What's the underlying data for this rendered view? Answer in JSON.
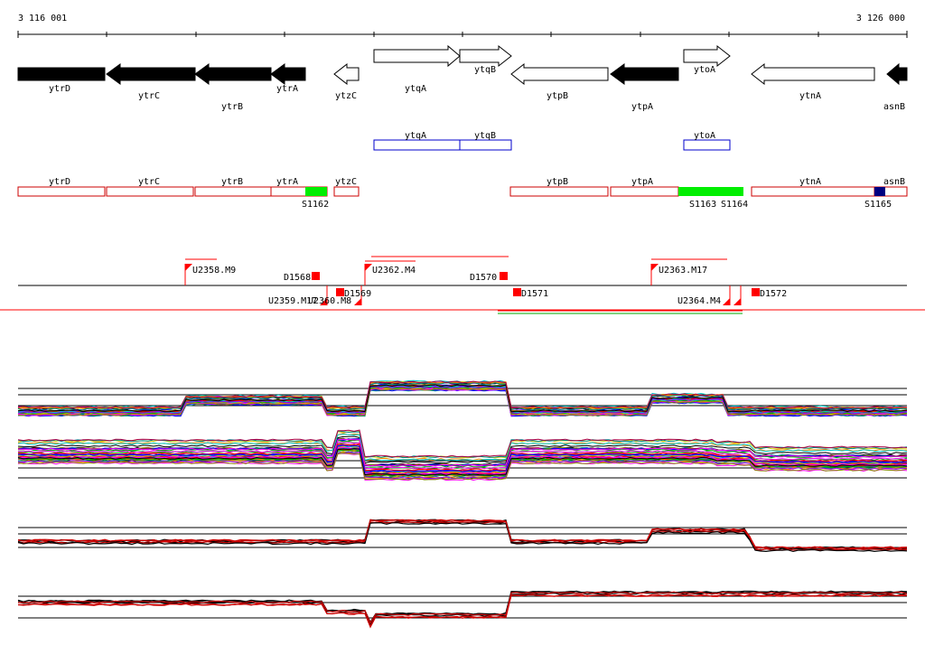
{
  "coordinates": {
    "start_label": "3 116 001",
    "end_label": "3 126 000"
  },
  "genes": [
    {
      "name": "ytrD",
      "strand": "-",
      "filled": true
    },
    {
      "name": "ytrC",
      "strand": "-",
      "filled": true
    },
    {
      "name": "ytrB",
      "strand": "-",
      "filled": true
    },
    {
      "name": "ytrA",
      "strand": "-",
      "filled": true
    },
    {
      "name": "ytzC",
      "strand": "-",
      "filled": false
    },
    {
      "name": "ytqA",
      "strand": "+",
      "filled": false
    },
    {
      "name": "ytqB",
      "strand": "+",
      "filled": false
    },
    {
      "name": "ytpB",
      "strand": "-",
      "filled": false
    },
    {
      "name": "ytpA",
      "strand": "-",
      "filled": true
    },
    {
      "name": "ytoA",
      "strand": "+",
      "filled": false
    },
    {
      "name": "ytnA",
      "strand": "-",
      "filled": false
    },
    {
      "name": "asnB",
      "strand": "-",
      "filled": true
    }
  ],
  "blue_boxes": [
    "ytqA",
    "ytqB",
    "ytoA"
  ],
  "red_boxes": [
    "ytrD",
    "ytrC",
    "ytrB",
    "ytrA",
    "ytzC",
    "ytpB",
    "ytpA",
    "ytnA",
    "asnB"
  ],
  "segments": [
    {
      "label": "S1162",
      "color": "#00ee00"
    },
    {
      "label": "S1163",
      "color": "#00ee00"
    },
    {
      "label": "S1164",
      "color": "#00ee00"
    },
    {
      "label": "S1165",
      "color": "#000080"
    }
  ],
  "features_above": [
    "U2358.M9",
    "U2362.M4",
    "U2363.M17"
  ],
  "features_below": [
    "U2359.M17",
    "U2360.M8",
    "U2364.M4"
  ],
  "markers": [
    "D1568",
    "D1569",
    "D1570",
    "D1571",
    "D1572"
  ],
  "colors": {
    "gene_outline": "#000000",
    "red_box": "#cc0000",
    "blue_box": "#0000cc",
    "marker": "#ff0000"
  }
}
